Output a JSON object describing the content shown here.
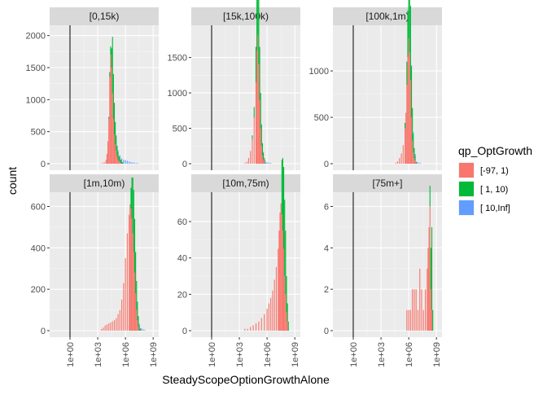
{
  "chart_data": {
    "type": "histogram",
    "facet_variable_levels": [
      "[0,15k)",
      "[15k,100k)",
      "[100k,1m)",
      "[1m,10m)",
      "[10m,75m)",
      "[75m+]"
    ],
    "xlabel": "SteadyScopeOptionGrowthAlone",
    "ylabel": "count",
    "x_scale": "log10",
    "x_ticks": [
      "1e+00",
      "1e+03",
      "1e+06",
      "1e+09"
    ],
    "x_tick_values": [
      1,
      1000,
      1000000,
      1000000000
    ],
    "reference_line_x": 1,
    "legend": {
      "title": "qp_OptGrowth",
      "placement": "right",
      "items": [
        {
          "name": "[-97,  1)",
          "color": "#F8766D"
        },
        {
          "name": "[  1, 10)",
          "color": "#00BA38"
        },
        {
          "name": "[ 10,Inf]",
          "color": "#619CFF"
        }
      ]
    },
    "background": "#EBEBEB",
    "strip_background": "#D9D9D9",
    "grid": true,
    "panels": [
      {
        "title": "[0,15k)",
        "ylim": [
          0,
          2100
        ],
        "y_ticks": [
          0,
          500,
          1000,
          1500,
          2000
        ],
        "x_ticks_shown": false,
        "series": [
          {
            "name": "[-97,  1)",
            "bins": [
              [
                3.3,
                5
              ],
              [
                3.5,
                10
              ],
              [
                3.7,
                25
              ],
              [
                3.9,
                60
              ],
              [
                4.0,
                150
              ],
              [
                4.1,
                350
              ],
              [
                4.2,
                700
              ],
              [
                4.3,
                1350
              ],
              [
                4.4,
                1700
              ],
              [
                4.5,
                1500
              ],
              [
                4.6,
                1100
              ],
              [
                4.7,
                700
              ],
              [
                4.8,
                450
              ],
              [
                4.9,
                300
              ],
              [
                5.0,
                200
              ],
              [
                5.1,
                120
              ],
              [
                5.2,
                70
              ],
              [
                5.3,
                40
              ],
              [
                5.4,
                25
              ],
              [
                5.5,
                15
              ]
            ]
          },
          {
            "name": "[  1, 10)",
            "bins": [
              [
                4.2,
                30
              ],
              [
                4.3,
                80
              ],
              [
                4.4,
                130
              ],
              [
                4.5,
                300
              ],
              [
                4.6,
                880
              ],
              [
                4.7,
                700
              ],
              [
                4.8,
                500
              ],
              [
                4.9,
                350
              ],
              [
                5.0,
                230
              ],
              [
                5.1,
                160
              ],
              [
                5.2,
                110
              ],
              [
                5.3,
                80
              ],
              [
                5.4,
                60
              ],
              [
                5.5,
                45
              ],
              [
                5.6,
                30
              ],
              [
                5.7,
                20
              ]
            ]
          },
          {
            "name": "[ 10,Inf]",
            "bins": [
              [
                5.0,
                15
              ],
              [
                5.2,
                30
              ],
              [
                5.4,
                45
              ],
              [
                5.6,
                55
              ],
              [
                5.8,
                60
              ],
              [
                6.0,
                55
              ],
              [
                6.2,
                45
              ],
              [
                6.4,
                35
              ],
              [
                6.6,
                25
              ],
              [
                6.8,
                20
              ],
              [
                7.0,
                15
              ],
              [
                7.2,
                10
              ],
              [
                7.4,
                8
              ]
            ]
          }
        ]
      },
      {
        "title": "[15k,100k)",
        "ylim": [
          0,
          1900
        ],
        "y_ticks": [
          0,
          500,
          1000,
          1500
        ],
        "x_ticks_shown": false,
        "series": [
          {
            "name": "[-97,  1)",
            "bins": [
              [
                3.6,
                10
              ],
              [
                3.8,
                30
              ],
              [
                4.0,
                80
              ],
              [
                4.2,
                180
              ],
              [
                4.4,
                350
              ],
              [
                4.6,
                650
              ],
              [
                4.8,
                1150
              ],
              [
                4.9,
                1600
              ],
              [
                5.0,
                1820
              ],
              [
                5.1,
                1400
              ],
              [
                5.2,
                900
              ],
              [
                5.3,
                500
              ],
              [
                5.4,
                250
              ],
              [
                5.5,
                120
              ],
              [
                5.6,
                60
              ],
              [
                5.7,
                30
              ]
            ]
          },
          {
            "name": "[  1, 10)",
            "bins": [
              [
                4.4,
                50
              ],
              [
                4.6,
                150
              ],
              [
                4.8,
                500
              ],
              [
                4.9,
                850
              ],
              [
                5.0,
                1300
              ],
              [
                5.1,
                1000
              ],
              [
                5.2,
                750
              ],
              [
                5.3,
                500
              ],
              [
                5.4,
                300
              ],
              [
                5.5,
                170
              ],
              [
                5.6,
                90
              ],
              [
                5.7,
                50
              ],
              [
                5.8,
                25
              ]
            ]
          },
          {
            "name": "[ 10,Inf]",
            "bins": [
              [
                5.4,
                8
              ],
              [
                5.6,
                15
              ],
              [
                5.8,
                20
              ],
              [
                6.0,
                20
              ],
              [
                6.2,
                15
              ],
              [
                6.4,
                10
              ]
            ]
          }
        ]
      },
      {
        "title": "[100k,1m)",
        "ylim": [
          0,
          1450
        ],
        "y_ticks": [
          0,
          500,
          1000
        ],
        "x_ticks_shown": false,
        "series": [
          {
            "name": "[-97,  1)",
            "bins": [
              [
                4.6,
                10
              ],
              [
                4.8,
                25
              ],
              [
                5.0,
                60
              ],
              [
                5.2,
                110
              ],
              [
                5.4,
                200
              ],
              [
                5.6,
                380
              ],
              [
                5.7,
                550
              ],
              [
                5.8,
                850
              ],
              [
                5.9,
                1150
              ],
              [
                6.0,
                1350
              ],
              [
                6.1,
                1200
              ],
              [
                6.2,
                900
              ],
              [
                6.3,
                500
              ],
              [
                6.4,
                250
              ],
              [
                6.5,
                120
              ],
              [
                6.6,
                60
              ],
              [
                6.7,
                30
              ]
            ]
          },
          {
            "name": "[  1, 10)",
            "bins": [
              [
                5.6,
                60
              ],
              [
                5.8,
                250
              ],
              [
                5.9,
                500
              ],
              [
                6.0,
                850
              ],
              [
                6.1,
                1050
              ],
              [
                6.2,
                800
              ],
              [
                6.3,
                550
              ],
              [
                6.4,
                350
              ],
              [
                6.5,
                200
              ],
              [
                6.6,
                110
              ],
              [
                6.7,
                50
              ],
              [
                6.8,
                20
              ]
            ]
          },
          {
            "name": "[ 10,Inf]",
            "bins": [
              [
                6.3,
                10
              ],
              [
                6.5,
                20
              ],
              [
                6.7,
                25
              ],
              [
                6.9,
                20
              ],
              [
                7.1,
                12
              ],
              [
                7.3,
                6
              ]
            ]
          }
        ]
      },
      {
        "title": "[1m,10m)",
        "ylim": [
          0,
          650
        ],
        "y_ticks": [
          0,
          200,
          400,
          600
        ],
        "x_ticks_shown": true,
        "series": [
          {
            "name": "[-97,  1)",
            "bins": [
              [
                3.4,
                8
              ],
              [
                3.6,
                15
              ],
              [
                3.8,
                25
              ],
              [
                4.0,
                30
              ],
              [
                4.2,
                35
              ],
              [
                4.4,
                40
              ],
              [
                4.6,
                45
              ],
              [
                4.8,
                50
              ],
              [
                5.0,
                60
              ],
              [
                5.2,
                80
              ],
              [
                5.4,
                100
              ],
              [
                5.6,
                150
              ],
              [
                5.8,
                230
              ],
              [
                6.0,
                350
              ],
              [
                6.2,
                470
              ],
              [
                6.4,
                560
              ],
              [
                6.5,
                610
              ],
              [
                6.6,
                590
              ],
              [
                6.7,
                540
              ],
              [
                6.8,
                470
              ],
              [
                6.9,
                380
              ],
              [
                7.0,
                280
              ],
              [
                7.1,
                180
              ],
              [
                7.2,
                100
              ],
              [
                7.3,
                50
              ],
              [
                7.4,
                20
              ]
            ]
          },
          {
            "name": "[  1, 10)",
            "bins": [
              [
                6.6,
                100
              ],
              [
                6.7,
                200
              ],
              [
                6.8,
                270
              ],
              [
                6.9,
                300
              ],
              [
                7.0,
                260
              ],
              [
                7.1,
                200
              ],
              [
                7.2,
                140
              ],
              [
                7.3,
                90
              ],
              [
                7.4,
                50
              ],
              [
                7.5,
                25
              ],
              [
                7.6,
                10
              ]
            ]
          },
          {
            "name": "[ 10,Inf]",
            "bins": [
              [
                7.5,
                8
              ],
              [
                7.7,
                12
              ],
              [
                7.9,
                8
              ],
              [
                8.1,
                4
              ]
            ]
          }
        ]
      },
      {
        "title": "[10m,75m)",
        "ylim": [
          0,
          74
        ],
        "y_ticks": [
          0,
          20,
          40,
          60
        ],
        "x_ticks_shown": true,
        "series": [
          {
            "name": "[-97,  1)",
            "bins": [
              [
                3.6,
                1
              ],
              [
                3.9,
                1
              ],
              [
                4.2,
                2
              ],
              [
                4.5,
                3
              ],
              [
                4.8,
                4
              ],
              [
                5.1,
                5
              ],
              [
                5.4,
                7
              ],
              [
                5.7,
                9
              ],
              [
                6.0,
                12
              ],
              [
                6.2,
                15
              ],
              [
                6.4,
                18
              ],
              [
                6.6,
                22
              ],
              [
                6.8,
                28
              ],
              [
                7.0,
                35
              ],
              [
                7.2,
                45
              ],
              [
                7.3,
                55
              ],
              [
                7.4,
                65
              ],
              [
                7.5,
                70
              ],
              [
                7.6,
                64
              ],
              [
                7.7,
                55
              ],
              [
                7.8,
                45
              ],
              [
                7.9,
                30
              ],
              [
                8.0,
                20
              ],
              [
                8.1,
                10
              ],
              [
                8.2,
                5
              ]
            ]
          },
          {
            "name": "[  1, 10)",
            "bins": [
              [
                7.6,
                30
              ],
              [
                7.7,
                40
              ],
              [
                7.8,
                45
              ],
              [
                7.9,
                42
              ],
              [
                8.0,
                35
              ],
              [
                8.1,
                20
              ],
              [
                8.2,
                10
              ],
              [
                8.3,
                5
              ]
            ]
          },
          {
            "name": "[ 10,Inf]",
            "bins": []
          }
        ]
      },
      {
        "title": "[75m+]",
        "ylim": [
          0,
          6.5
        ],
        "y_ticks": [
          0,
          2,
          4,
          6
        ],
        "x_ticks_shown": true,
        "series": [
          {
            "name": "[-97,  1)",
            "bins": [
              [
                5.8,
                1
              ],
              [
                6.0,
                1
              ],
              [
                6.2,
                1
              ],
              [
                6.4,
                2
              ],
              [
                6.6,
                2
              ],
              [
                6.8,
                2
              ],
              [
                7.0,
                1
              ],
              [
                7.2,
                3
              ],
              [
                7.4,
                2
              ],
              [
                7.6,
                1
              ],
              [
                7.8,
                2
              ],
              [
                8.0,
                3
              ],
              [
                8.1,
                4
              ],
              [
                8.2,
                5
              ],
              [
                8.3,
                6
              ],
              [
                8.4,
                2
              ],
              [
                8.5,
                1
              ]
            ]
          },
          {
            "name": "[  1, 10)",
            "bins": [
              [
                8.3,
                1
              ],
              [
                8.4,
                2
              ],
              [
                8.5,
                4
              ],
              [
                8.6,
                1
              ]
            ]
          },
          {
            "name": "[ 10,Inf]",
            "bins": []
          }
        ]
      }
    ]
  }
}
